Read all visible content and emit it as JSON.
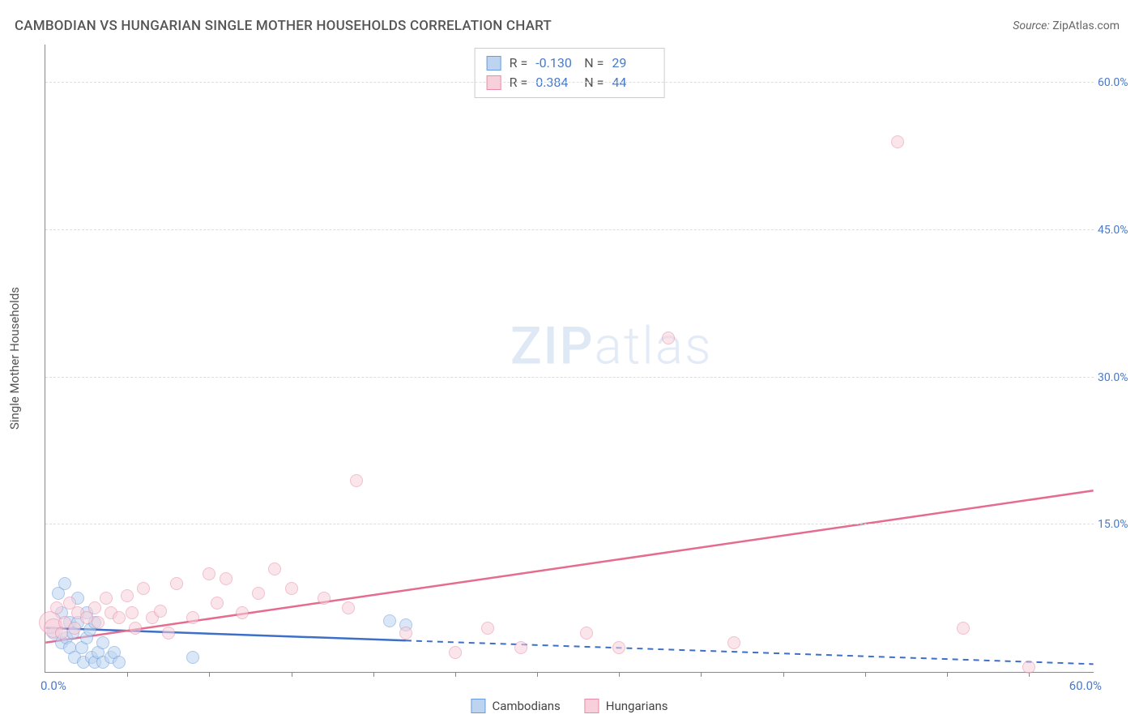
{
  "title": "CAMBODIAN VS HUNGARIAN SINGLE MOTHER HOUSEHOLDS CORRELATION CHART",
  "source_label": "Source:",
  "source_value": "ZipAtlas.com",
  "watermark_a": "ZIP",
  "watermark_b": "atlas",
  "ylabel": "Single Mother Households",
  "chart": {
    "type": "scatter",
    "xlim": [
      0,
      64
    ],
    "ylim": [
      0,
      64
    ],
    "x_origin_label": "0.0%",
    "x_max_label": "60.0%",
    "y_ticks": [
      15,
      30,
      45,
      60
    ],
    "y_tick_labels": [
      "15.0%",
      "30.0%",
      "45.0%",
      "60.0%"
    ],
    "x_minor_ticks": [
      5,
      10,
      15,
      20,
      25,
      30,
      35,
      40,
      45,
      50,
      55,
      60
    ],
    "background_color": "#ffffff",
    "grid_color": "#dddddd",
    "axis_color": "#888888",
    "tick_label_color": "#4a7ac7",
    "series": [
      {
        "name": "Cambodians",
        "fill": "#bcd4f0",
        "stroke": "#6a9be0",
        "fill_opacity": 0.55,
        "marker_radius": 8,
        "R": "-0.130",
        "N": "29",
        "trend": {
          "x0": 0,
          "y0": 4.5,
          "x1": 22,
          "y1": 3.2,
          "solid": true,
          "ext_x1": 64,
          "ext_y1": 0.8,
          "color": "#3d6fc9",
          "width": 2.5
        },
        "points": [
          {
            "x": 0.5,
            "y": 4.0
          },
          {
            "x": 0.8,
            "y": 8.0
          },
          {
            "x": 1.0,
            "y": 3.0
          },
          {
            "x": 1.0,
            "y": 6.0
          },
          {
            "x": 1.2,
            "y": 9.0
          },
          {
            "x": 1.3,
            "y": 3.5
          },
          {
            "x": 1.5,
            "y": 5.0
          },
          {
            "x": 1.5,
            "y": 2.5
          },
          {
            "x": 1.7,
            "y": 4.0
          },
          {
            "x": 1.8,
            "y": 1.5
          },
          {
            "x": 2.0,
            "y": 5.0
          },
          {
            "x": 2.0,
            "y": 7.5
          },
          {
            "x": 2.2,
            "y": 2.5
          },
          {
            "x": 2.3,
            "y": 1.0
          },
          {
            "x": 2.5,
            "y": 3.5
          },
          {
            "x": 2.5,
            "y": 6.0
          },
          {
            "x": 2.7,
            "y": 4.3
          },
          {
            "x": 2.8,
            "y": 1.5
          },
          {
            "x": 3.0,
            "y": 1.0
          },
          {
            "x": 3.0,
            "y": 5.0
          },
          {
            "x": 3.2,
            "y": 2.0
          },
          {
            "x": 3.5,
            "y": 3.0
          },
          {
            "x": 3.5,
            "y": 1.0
          },
          {
            "x": 4.0,
            "y": 1.5
          },
          {
            "x": 4.2,
            "y": 2.0
          },
          {
            "x": 4.5,
            "y": 1.0
          },
          {
            "x": 9.0,
            "y": 1.5
          },
          {
            "x": 21.0,
            "y": 5.2
          },
          {
            "x": 22.0,
            "y": 4.8
          }
        ]
      },
      {
        "name": "Hungarians",
        "fill": "#f7d0db",
        "stroke": "#e98ba6",
        "fill_opacity": 0.55,
        "marker_radius": 8,
        "R": "0.384",
        "N": "44",
        "trend": {
          "x0": 0,
          "y0": 3.0,
          "x1": 64,
          "y1": 18.5,
          "solid": true,
          "color": "#e56b8f",
          "width": 2.5
        },
        "points": [
          {
            "x": 0.3,
            "y": 5.0,
            "r": 14
          },
          {
            "x": 0.5,
            "y": 4.5,
            "r": 12
          },
          {
            "x": 0.7,
            "y": 6.5
          },
          {
            "x": 1.0,
            "y": 4.0
          },
          {
            "x": 1.2,
            "y": 5.0
          },
          {
            "x": 1.5,
            "y": 7.0
          },
          {
            "x": 1.8,
            "y": 4.5
          },
          {
            "x": 2.0,
            "y": 6.0
          },
          {
            "x": 2.5,
            "y": 5.5
          },
          {
            "x": 3.0,
            "y": 6.5
          },
          {
            "x": 3.2,
            "y": 5.0
          },
          {
            "x": 3.7,
            "y": 7.5
          },
          {
            "x": 4.0,
            "y": 6.0
          },
          {
            "x": 4.5,
            "y": 5.5
          },
          {
            "x": 5.0,
            "y": 7.8
          },
          {
            "x": 5.3,
            "y": 6.0
          },
          {
            "x": 5.5,
            "y": 4.5
          },
          {
            "x": 6.0,
            "y": 8.5
          },
          {
            "x": 6.5,
            "y": 5.5
          },
          {
            "x": 7.0,
            "y": 6.2
          },
          {
            "x": 7.5,
            "y": 4.0
          },
          {
            "x": 8.0,
            "y": 9.0
          },
          {
            "x": 9.0,
            "y": 5.5
          },
          {
            "x": 10.0,
            "y": 10.0
          },
          {
            "x": 10.5,
            "y": 7.0
          },
          {
            "x": 11.0,
            "y": 9.5
          },
          {
            "x": 12.0,
            "y": 6.0
          },
          {
            "x": 13.0,
            "y": 8.0
          },
          {
            "x": 14.0,
            "y": 10.5
          },
          {
            "x": 15.0,
            "y": 8.5
          },
          {
            "x": 17.0,
            "y": 7.5
          },
          {
            "x": 18.5,
            "y": 6.5
          },
          {
            "x": 19.0,
            "y": 19.5
          },
          {
            "x": 22.0,
            "y": 4.0
          },
          {
            "x": 25.0,
            "y": 2.0
          },
          {
            "x": 27.0,
            "y": 4.5
          },
          {
            "x": 29.0,
            "y": 2.5
          },
          {
            "x": 33.0,
            "y": 4.0
          },
          {
            "x": 35.0,
            "y": 2.5
          },
          {
            "x": 38.0,
            "y": 34.0
          },
          {
            "x": 42.0,
            "y": 3.0
          },
          {
            "x": 52.0,
            "y": 54.0
          },
          {
            "x": 56.0,
            "y": 4.5
          },
          {
            "x": 60.0,
            "y": 0.5
          }
        ]
      }
    ]
  },
  "legend": {
    "items": [
      {
        "label": "Cambodians",
        "fill": "#bcd4f0",
        "stroke": "#6a9be0"
      },
      {
        "label": "Hungarians",
        "fill": "#f7d0db",
        "stroke": "#e98ba6"
      }
    ]
  }
}
